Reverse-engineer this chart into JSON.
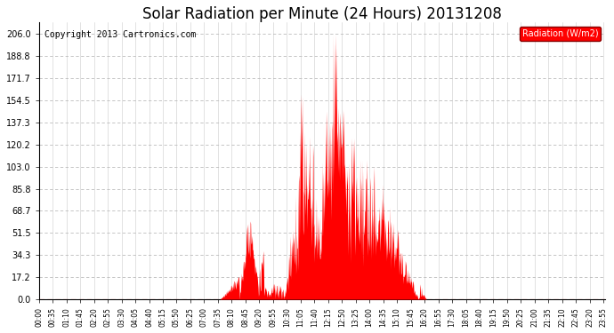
{
  "title": "Solar Radiation per Minute (24 Hours) 20131208",
  "copyright_text": "Copyright 2013 Cartronics.com",
  "legend_label": "Radiation (W/m2)",
  "y_ticks": [
    0.0,
    17.2,
    34.3,
    51.5,
    68.7,
    85.8,
    103.0,
    120.2,
    137.3,
    154.5,
    171.7,
    188.8,
    206.0
  ],
  "ylim": [
    0.0,
    215.0
  ],
  "xlim": [
    0,
    1439
  ],
  "fill_color": "#FF0000",
  "zero_line_color": "#FF0000",
  "background_color": "#FFFFFF",
  "grid_color_v": "#CCCCCC",
  "grid_color_h": "#BBBBBB",
  "title_fontsize": 12,
  "copyright_fontsize": 7,
  "tick_label_fontsize": 5.5,
  "ytick_label_fontsize": 7,
  "legend_bg": "#FF0000",
  "legend_text_color": "#FFFFFF",
  "legend_fontsize": 7,
  "x_tick_step_min": 35,
  "sunrise_min": 460,
  "sunset_min": 985
}
